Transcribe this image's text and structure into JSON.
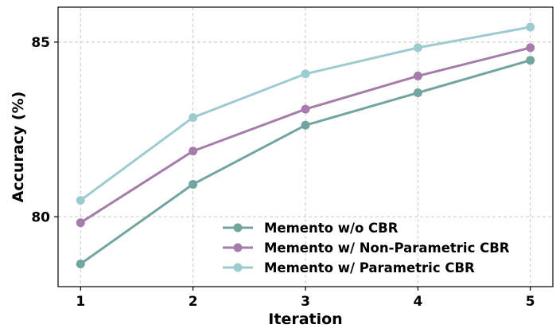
{
  "chart_data": {
    "type": "line",
    "xlabel": "Iteration",
    "ylabel": "Accuracy (%)",
    "x": [
      1,
      2,
      3,
      4,
      5
    ],
    "xlim": [
      0.8,
      5.2
    ],
    "ylim": [
      78.0,
      86.0
    ],
    "yticks": [
      80,
      85
    ],
    "grid": true,
    "legend_position": "lower-right",
    "series": [
      {
        "name": "Memento w/o CBR",
        "values": [
          78.65,
          80.93,
          82.62,
          83.55,
          84.48
        ],
        "color": "#72a5a0"
      },
      {
        "name": "Memento w/ Non-Parametric CBR",
        "values": [
          79.83,
          81.88,
          83.08,
          84.03,
          84.84
        ],
        "color": "#a57caa"
      },
      {
        "name": "Memento w/ Parametric CBR",
        "values": [
          80.47,
          82.84,
          84.09,
          84.84,
          85.43
        ],
        "color": "#9ccbd0"
      }
    ]
  }
}
